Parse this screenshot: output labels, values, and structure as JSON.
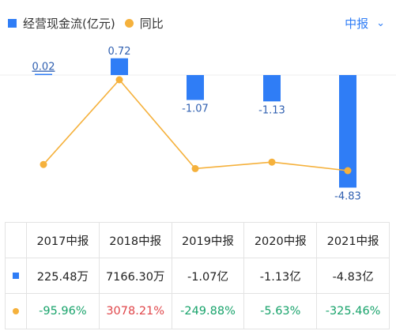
{
  "legend": {
    "series1": "经营现金流(亿元)",
    "series2": "同比"
  },
  "period_selector": {
    "label": "中报",
    "icon": "chevron-down-icon"
  },
  "colors": {
    "bar": "#2f7df6",
    "line": "#f5b13c",
    "positive": "#e0464a",
    "negative": "#18a36b"
  },
  "chart_data": {
    "type": "bar",
    "categories": [
      "2017中报",
      "2018中报",
      "2019中报",
      "2020中报",
      "2021中报"
    ],
    "series": [
      {
        "name": "经营现金流(亿元)",
        "type": "bar",
        "values": [
          0.02,
          0.72,
          -1.07,
          -1.13,
          -4.83
        ],
        "labels": [
          "0.02",
          "0.72",
          "-1.07",
          "-1.13",
          "-4.83"
        ]
      },
      {
        "name": "同比",
        "type": "line",
        "values": [
          -95.96,
          3078.21,
          -249.88,
          -5.63,
          -325.46
        ]
      }
    ]
  },
  "table": {
    "headers": [
      "2017中报",
      "2018中报",
      "2019中报",
      "2020中报",
      "2021中报"
    ],
    "cash_flow_row": [
      "225.48万",
      "7166.30万",
      "-1.07亿",
      "-1.13亿",
      "-4.83亿"
    ],
    "yoy_row": [
      "-95.96%",
      "3078.21%",
      "-249.88%",
      "-5.63%",
      "-325.46%"
    ]
  }
}
